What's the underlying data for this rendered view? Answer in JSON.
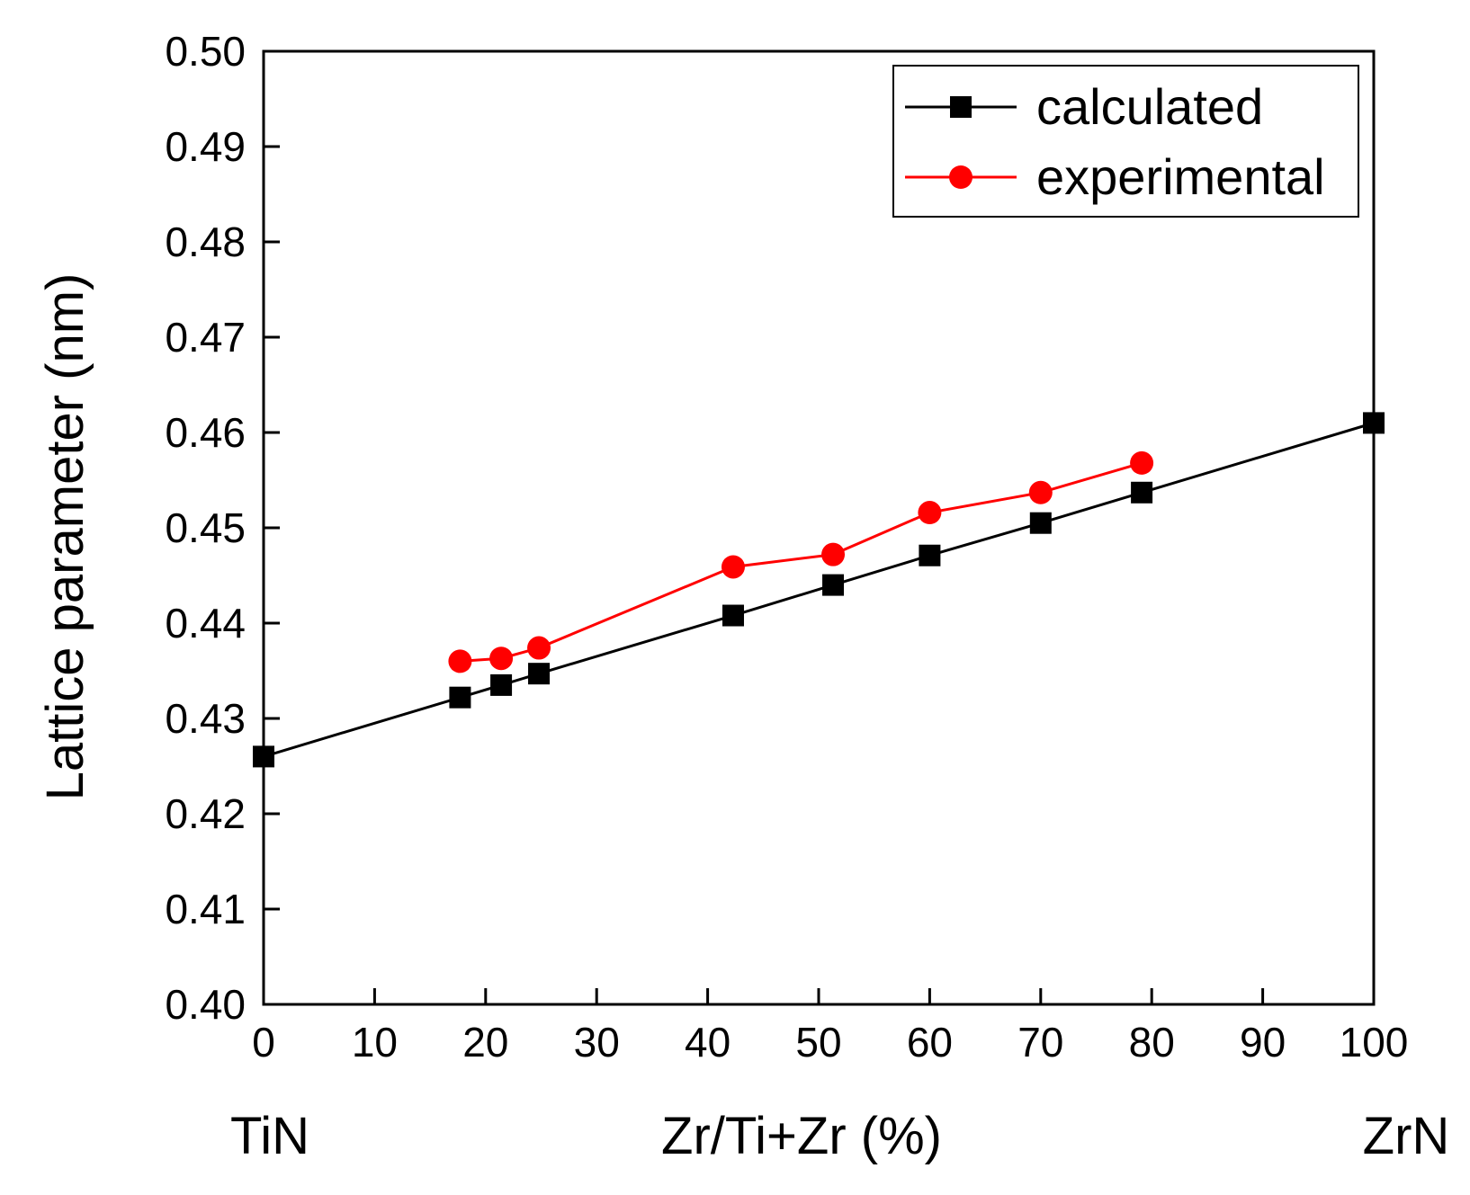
{
  "chart_data": {
    "type": "line",
    "xlabel": "Zr/Ti+Zr (%)",
    "ylabel": "Lattice parameter (nm)",
    "x_end_labels": {
      "left": "TiN",
      "right": "ZrN"
    },
    "xlim": [
      0,
      100
    ],
    "ylim": [
      0.4,
      0.5
    ],
    "xticks": [
      "0",
      "10",
      "20",
      "30",
      "40",
      "50",
      "60",
      "70",
      "80",
      "90",
      "100"
    ],
    "yticks": [
      "0.40",
      "0.41",
      "0.42",
      "0.43",
      "0.44",
      "0.45",
      "0.46",
      "0.47",
      "0.48",
      "0.49",
      "0.50"
    ],
    "grid": false,
    "legend_position": "top-right",
    "series": [
      {
        "name": "calculated",
        "color": "#000000",
        "marker": "square",
        "x": [
          0,
          17.7,
          21.4,
          24.8,
          42.3,
          51.3,
          60.0,
          70.0,
          79.1,
          100
        ],
        "y": [
          0.426,
          0.4322,
          0.4335,
          0.4347,
          0.4408,
          0.444,
          0.4471,
          0.4505,
          0.4537,
          0.461
        ]
      },
      {
        "name": "experimental",
        "color": "#ff0000",
        "marker": "circle",
        "x": [
          17.7,
          21.4,
          24.8,
          42.3,
          51.3,
          60.0,
          70.0,
          79.1
        ],
        "y": [
          0.436,
          0.4363,
          0.4374,
          0.4459,
          0.4472,
          0.4516,
          0.4537,
          0.4568
        ]
      }
    ]
  }
}
